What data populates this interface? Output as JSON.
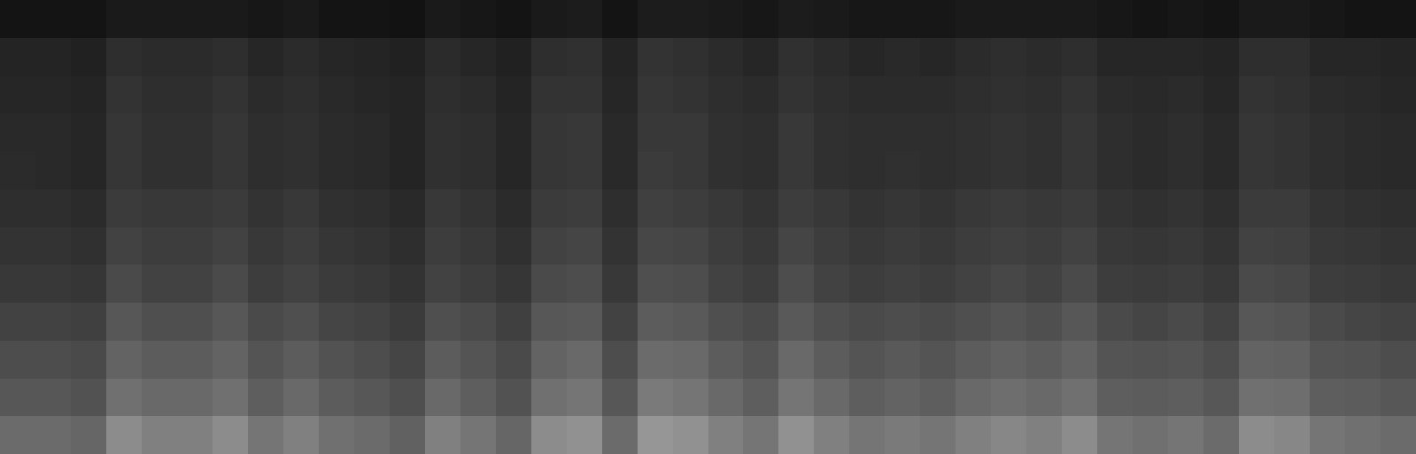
{
  "chart_data": {
    "type": "heatmap",
    "tick_labels": false,
    "color": "#ffffff",
    "zlim": [
      0,
      100
    ],
    "cells": [
      [
        8,
        8,
        8,
        10,
        10,
        10,
        10,
        9,
        10,
        8,
        8,
        7,
        10,
        9,
        8,
        10,
        11,
        8,
        11,
        11,
        10,
        9,
        11,
        10,
        9,
        9,
        9,
        10,
        10,
        10,
        10,
        9,
        8,
        9,
        8,
        10,
        10,
        9,
        8,
        8
      ],
      [
        14,
        14,
        13,
        18,
        17,
        17,
        18,
        15,
        17,
        15,
        14,
        13,
        17,
        15,
        13,
        18,
        19,
        14,
        20,
        19,
        17,
        15,
        19,
        17,
        15,
        16,
        15,
        17,
        18,
        17,
        18,
        15,
        15,
        15,
        14,
        18,
        18,
        15,
        15,
        14
      ],
      [
        15,
        15,
        14,
        20,
        18,
        18,
        20,
        17,
        18,
        16,
        15,
        14,
        18,
        17,
        14,
        20,
        20,
        15,
        21,
        20,
        18,
        17,
        20,
        18,
        17,
        17,
        17,
        18,
        19,
        18,
        20,
        17,
        16,
        17,
        15,
        20,
        19,
        17,
        16,
        15
      ],
      [
        16,
        16,
        15,
        21,
        19,
        19,
        21,
        18,
        19,
        17,
        16,
        14,
        19,
        18,
        15,
        21,
        22,
        16,
        22,
        22,
        19,
        18,
        22,
        19,
        18,
        18,
        18,
        19,
        20,
        19,
        21,
        18,
        17,
        18,
        16,
        21,
        20,
        18,
        17,
        16
      ],
      [
        17,
        16,
        15,
        21,
        19,
        19,
        21,
        18,
        19,
        17,
        16,
        14,
        19,
        18,
        15,
        21,
        22,
        16,
        23,
        22,
        19,
        18,
        22,
        19,
        18,
        19,
        18,
        19,
        20,
        19,
        21,
        18,
        17,
        18,
        16,
        21,
        20,
        18,
        17,
        16
      ],
      [
        18,
        18,
        17,
        23,
        22,
        22,
        23,
        20,
        22,
        19,
        18,
        16,
        22,
        20,
        17,
        23,
        24,
        18,
        25,
        24,
        22,
        20,
        24,
        22,
        20,
        21,
        20,
        22,
        23,
        22,
        23,
        20,
        19,
        20,
        18,
        23,
        23,
        20,
        19,
        18
      ],
      [
        20,
        20,
        19,
        26,
        24,
        24,
        26,
        22,
        24,
        21,
        20,
        18,
        24,
        22,
        19,
        26,
        27,
        20,
        28,
        27,
        24,
        22,
        27,
        24,
        22,
        23,
        22,
        24,
        25,
        24,
        26,
        22,
        21,
        22,
        20,
        26,
        25,
        22,
        21,
        20
      ],
      [
        22,
        22,
        21,
        29,
        26,
        26,
        29,
        24,
        26,
        23,
        22,
        20,
        26,
        24,
        21,
        29,
        30,
        22,
        31,
        30,
        26,
        24,
        30,
        26,
        24,
        25,
        24,
        26,
        28,
        26,
        29,
        24,
        23,
        24,
        22,
        29,
        28,
        24,
        23,
        22
      ],
      [
        26,
        26,
        25,
        34,
        31,
        31,
        34,
        29,
        31,
        27,
        26,
        23,
        31,
        29,
        25,
        34,
        35,
        26,
        36,
        35,
        31,
        29,
        35,
        31,
        29,
        30,
        29,
        31,
        33,
        31,
        34,
        29,
        27,
        29,
        26,
        34,
        33,
        29,
        27,
        26
      ],
      [
        30,
        30,
        29,
        39,
        36,
        36,
        39,
        33,
        36,
        32,
        30,
        27,
        36,
        33,
        29,
        39,
        41,
        30,
        42,
        41,
        36,
        33,
        41,
        36,
        33,
        35,
        33,
        36,
        38,
        36,
        39,
        33,
        32,
        33,
        30,
        39,
        38,
        33,
        32,
        30
      ],
      [
        34,
        34,
        32,
        44,
        41,
        41,
        44,
        37,
        41,
        36,
        34,
        31,
        41,
        37,
        32,
        44,
        46,
        34,
        48,
        46,
        41,
        37,
        46,
        41,
        37,
        39,
        37,
        41,
        43,
        41,
        44,
        37,
        36,
        37,
        34,
        44,
        43,
        37,
        36,
        34
      ],
      [
        42,
        42,
        40,
        55,
        50,
        50,
        55,
        46,
        50,
        44,
        42,
        38,
        50,
        46,
        40,
        55,
        57,
        42,
        59,
        57,
        50,
        46,
        57,
        50,
        46,
        48,
        46,
        50,
        53,
        50,
        55,
        46,
        44,
        46,
        42,
        55,
        53,
        46,
        44,
        42
      ]
    ]
  }
}
